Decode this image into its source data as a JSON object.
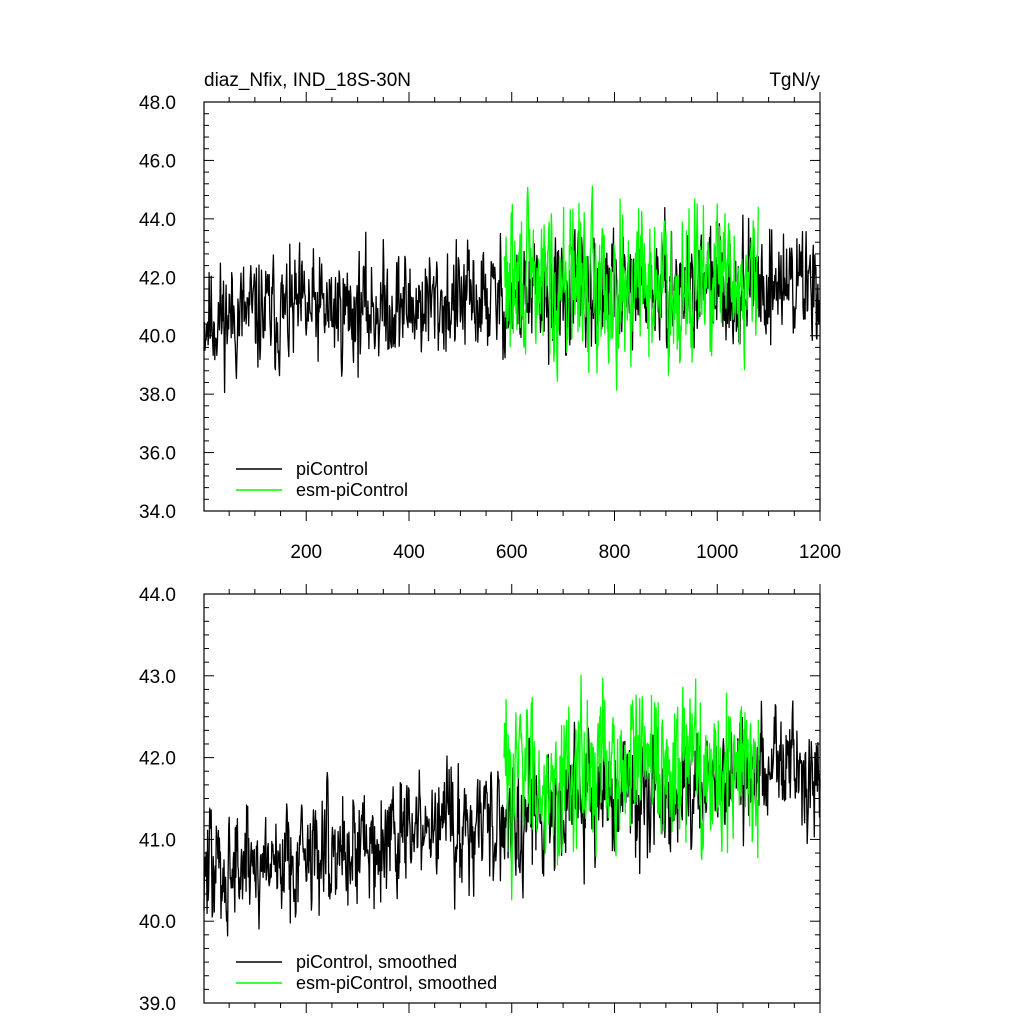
{
  "chart_data": [
    {
      "type": "line",
      "title_left": "diaz_Nfix, IND_18S-30N",
      "title_right": "TgN/y",
      "xlabel": "",
      "ylabel": "",
      "xlim": [
        1,
        1200
      ],
      "ylim": [
        34.0,
        48.0
      ],
      "x_ticks": [
        200,
        400,
        600,
        800,
        1000,
        1200
      ],
      "x_tick_labels": [
        "200",
        "400",
        "600",
        "800",
        "1000",
        "1200"
      ],
      "y_ticks": [
        34.0,
        36.0,
        38.0,
        40.0,
        42.0,
        44.0,
        46.0,
        48.0
      ],
      "y_tick_labels": [
        "34.0",
        "36.0",
        "38.0",
        "40.0",
        "42.0",
        "44.0",
        "46.0",
        "48.0"
      ],
      "legend_position": "bottom-left",
      "legend": [
        "piControl",
        "esm-piControl"
      ],
      "series": [
        {
          "name": "piControl",
          "color": "#000000",
          "x_start": 1,
          "x_end": 1200,
          "mean_start": 40.6,
          "mean_end": 41.9,
          "amplitude": 1.1,
          "seed": 11
        },
        {
          "name": "esm-piControl",
          "color": "#00ff00",
          "x_start": 585,
          "x_end": 1080,
          "mean_start": 41.8,
          "mean_end": 41.8,
          "amplitude": 1.5,
          "seed": 29
        }
      ]
    },
    {
      "type": "line",
      "title_left": "",
      "title_right": "",
      "xlabel": "",
      "ylabel": "",
      "xlim": [
        1,
        1200
      ],
      "ylim": [
        39.0,
        44.0
      ],
      "x_ticks": [
        200,
        400,
        600,
        800,
        1000,
        1200
      ],
      "x_tick_labels": [],
      "y_ticks": [
        39.0,
        40.0,
        41.0,
        42.0,
        43.0,
        44.0
      ],
      "y_tick_labels": [
        "39.0",
        "40.0",
        "41.0",
        "42.0",
        "43.0",
        "44.0"
      ],
      "legend_position": "bottom-left",
      "legend": [
        "piControl, smoothed",
        "esm-piControl, smoothed"
      ],
      "series": [
        {
          "name": "piControl, smoothed",
          "color": "#000000",
          "x_start": 1,
          "x_end": 1200,
          "mean_start": 40.6,
          "mean_end": 42.0,
          "amplitude": 0.42,
          "seed": 47
        },
        {
          "name": "esm-piControl, smoothed",
          "color": "#00ff00",
          "x_start": 585,
          "x_end": 1080,
          "mean_start": 41.8,
          "mean_end": 41.9,
          "amplitude": 0.55,
          "seed": 83
        }
      ]
    }
  ]
}
